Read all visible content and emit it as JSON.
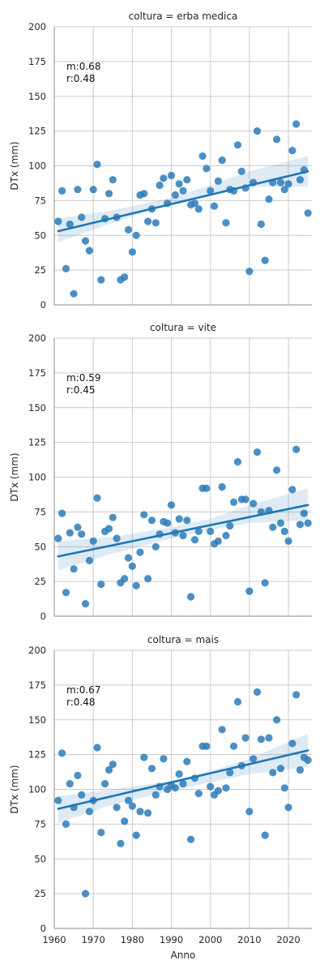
{
  "chart_data": [
    {
      "type": "scatter",
      "title": "coltura = erba medica",
      "xlabel": "",
      "ylabel": "DTx (mm)",
      "xlim": [
        1960,
        2026
      ],
      "ylim": [
        0,
        200
      ],
      "yticks": [
        0,
        25,
        50,
        75,
        100,
        125,
        150,
        175,
        200
      ],
      "xticks": [
        1960,
        1970,
        1980,
        1990,
        2000,
        2010,
        2020
      ],
      "annotation": [
        "m:0.68",
        "r:0.48"
      ],
      "points": [
        [
          1961,
          60
        ],
        [
          1962,
          82
        ],
        [
          1963,
          26
        ],
        [
          1964,
          58
        ],
        [
          1965,
          8
        ],
        [
          1966,
          83
        ],
        [
          1967,
          63
        ],
        [
          1968,
          46
        ],
        [
          1969,
          39
        ],
        [
          1970,
          83
        ],
        [
          1971,
          101
        ],
        [
          1972,
          18
        ],
        [
          1973,
          62
        ],
        [
          1974,
          80
        ],
        [
          1975,
          90
        ],
        [
          1976,
          63
        ],
        [
          1977,
          18
        ],
        [
          1978,
          20
        ],
        [
          1979,
          54
        ],
        [
          1980,
          38
        ],
        [
          1981,
          50
        ],
        [
          1982,
          79
        ],
        [
          1983,
          80
        ],
        [
          1984,
          60
        ],
        [
          1985,
          69
        ],
        [
          1986,
          59
        ],
        [
          1987,
          86
        ],
        [
          1988,
          91
        ],
        [
          1989,
          73
        ],
        [
          1990,
          93
        ],
        [
          1991,
          79
        ],
        [
          1992,
          87
        ],
        [
          1993,
          82
        ],
        [
          1994,
          90
        ],
        [
          1995,
          72
        ],
        [
          1996,
          73
        ],
        [
          1997,
          69
        ],
        [
          1998,
          107
        ],
        [
          1999,
          98
        ],
        [
          2000,
          82
        ],
        [
          2001,
          71
        ],
        [
          2002,
          89
        ],
        [
          2003,
          104
        ],
        [
          2004,
          59
        ],
        [
          2005,
          83
        ],
        [
          2006,
          82
        ],
        [
          2007,
          115
        ],
        [
          2008,
          96
        ],
        [
          2009,
          84
        ],
        [
          2010,
          24
        ],
        [
          2011,
          88
        ],
        [
          2012,
          125
        ],
        [
          2013,
          58
        ],
        [
          2014,
          32
        ],
        [
          2015,
          76
        ],
        [
          2016,
          88
        ],
        [
          2017,
          119
        ],
        [
          2018,
          88
        ],
        [
          2019,
          83
        ],
        [
          2020,
          87
        ],
        [
          2021,
          111
        ],
        [
          2022,
          130
        ],
        [
          2023,
          90
        ],
        [
          2024,
          97
        ],
        [
          2025,
          66
        ]
      ],
      "fit_line": [
        [
          1961,
          53
        ],
        [
          2025,
          96
        ]
      ],
      "ci_band": {
        "x": [
          1961,
          1975,
          1990,
          2000,
          2010,
          2025
        ],
        "lower": [
          45,
          59,
          73,
          79,
          85,
          85
        ],
        "upper": [
          62,
          68,
          77,
          86,
          96,
          107
        ]
      }
    },
    {
      "type": "scatter",
      "title": "coltura = vite",
      "xlabel": "",
      "ylabel": "DTx (mm)",
      "xlim": [
        1960,
        2026
      ],
      "ylim": [
        0,
        200
      ],
      "yticks": [
        0,
        25,
        50,
        75,
        100,
        125,
        150,
        175,
        200
      ],
      "xticks": [
        1960,
        1970,
        1980,
        1990,
        2000,
        2010,
        2020
      ],
      "annotation": [
        "m:0.59",
        "r:0.45"
      ],
      "points": [
        [
          1961,
          56
        ],
        [
          1962,
          74
        ],
        [
          1963,
          17
        ],
        [
          1964,
          60
        ],
        [
          1965,
          34
        ],
        [
          1966,
          64
        ],
        [
          1967,
          59
        ],
        [
          1968,
          9
        ],
        [
          1969,
          40
        ],
        [
          1970,
          54
        ],
        [
          1971,
          85
        ],
        [
          1972,
          23
        ],
        [
          1973,
          61
        ],
        [
          1974,
          63
        ],
        [
          1975,
          71
        ],
        [
          1976,
          56
        ],
        [
          1977,
          24
        ],
        [
          1978,
          27
        ],
        [
          1979,
          42
        ],
        [
          1980,
          36
        ],
        [
          1981,
          22
        ],
        [
          1982,
          46
        ],
        [
          1983,
          73
        ],
        [
          1984,
          27
        ],
        [
          1985,
          69
        ],
        [
          1986,
          50
        ],
        [
          1987,
          59
        ],
        [
          1988,
          68
        ],
        [
          1989,
          67
        ],
        [
          1990,
          80
        ],
        [
          1991,
          60
        ],
        [
          1992,
          70
        ],
        [
          1993,
          58
        ],
        [
          1994,
          69
        ],
        [
          1995,
          14
        ],
        [
          1996,
          55
        ],
        [
          1997,
          61
        ],
        [
          1998,
          92
        ],
        [
          1999,
          92
        ],
        [
          2000,
          61
        ],
        [
          2001,
          52
        ],
        [
          2002,
          54
        ],
        [
          2003,
          93
        ],
        [
          2004,
          58
        ],
        [
          2005,
          65
        ],
        [
          2006,
          82
        ],
        [
          2007,
          111
        ],
        [
          2008,
          84
        ],
        [
          2009,
          84
        ],
        [
          2010,
          18
        ],
        [
          2011,
          81
        ],
        [
          2012,
          118
        ],
        [
          2013,
          75
        ],
        [
          2014,
          24
        ],
        [
          2015,
          76
        ],
        [
          2016,
          64
        ],
        [
          2017,
          105
        ],
        [
          2018,
          67
        ],
        [
          2019,
          61
        ],
        [
          2020,
          54
        ],
        [
          2021,
          91
        ],
        [
          2022,
          120
        ],
        [
          2023,
          66
        ],
        [
          2024,
          74
        ],
        [
          2025,
          67
        ]
      ],
      "fit_line": [
        [
          1961,
          43
        ],
        [
          2025,
          80
        ]
      ],
      "ci_band": {
        "x": [
          1961,
          1975,
          1990,
          2000,
          2010,
          2025
        ],
        "lower": [
          33,
          45,
          56,
          62,
          67,
          69
        ],
        "upper": [
          54,
          57,
          64,
          70,
          80,
          92
        ]
      }
    },
    {
      "type": "scatter",
      "title": "coltura = mais",
      "xlabel": "Anno",
      "ylabel": "DTx (mm)",
      "xlim": [
        1960,
        2026
      ],
      "ylim": [
        0,
        200
      ],
      "yticks": [
        0,
        25,
        50,
        75,
        100,
        125,
        150,
        175,
        200
      ],
      "xticks": [
        1960,
        1970,
        1980,
        1990,
        2000,
        2010,
        2020
      ],
      "annotation": [
        "m:0.67",
        "r:0.48"
      ],
      "points": [
        [
          1961,
          92
        ],
        [
          1962,
          126
        ],
        [
          1963,
          75
        ],
        [
          1964,
          104
        ],
        [
          1965,
          87
        ],
        [
          1966,
          110
        ],
        [
          1967,
          96
        ],
        [
          1968,
          25
        ],
        [
          1969,
          84
        ],
        [
          1970,
          92
        ],
        [
          1971,
          130
        ],
        [
          1972,
          69
        ],
        [
          1973,
          104
        ],
        [
          1974,
          114
        ],
        [
          1975,
          118
        ],
        [
          1976,
          87
        ],
        [
          1977,
          61
        ],
        [
          1978,
          77
        ],
        [
          1979,
          92
        ],
        [
          1980,
          88
        ],
        [
          1981,
          67
        ],
        [
          1982,
          84
        ],
        [
          1983,
          123
        ],
        [
          1984,
          83
        ],
        [
          1985,
          115
        ],
        [
          1986,
          96
        ],
        [
          1987,
          102
        ],
        [
          1988,
          122
        ],
        [
          1989,
          100
        ],
        [
          1990,
          103
        ],
        [
          1991,
          101
        ],
        [
          1992,
          111
        ],
        [
          1993,
          104
        ],
        [
          1994,
          120
        ],
        [
          1995,
          64
        ],
        [
          1996,
          108
        ],
        [
          1997,
          97
        ],
        [
          1998,
          131
        ],
        [
          1999,
          131
        ],
        [
          2000,
          102
        ],
        [
          2001,
          96
        ],
        [
          2002,
          99
        ],
        [
          2003,
          143
        ],
        [
          2004,
          101
        ],
        [
          2005,
          112
        ],
        [
          2006,
          131
        ],
        [
          2007,
          163
        ],
        [
          2008,
          117
        ],
        [
          2009,
          137
        ],
        [
          2010,
          84
        ],
        [
          2011,
          122
        ],
        [
          2012,
          170
        ],
        [
          2013,
          136
        ],
        [
          2014,
          67
        ],
        [
          2015,
          137
        ],
        [
          2016,
          112
        ],
        [
          2017,
          150
        ],
        [
          2018,
          115
        ],
        [
          2019,
          101
        ],
        [
          2020,
          87
        ],
        [
          2021,
          133
        ],
        [
          2022,
          168
        ],
        [
          2023,
          114
        ],
        [
          2024,
          123
        ],
        [
          2025,
          121
        ]
      ],
      "fit_line": [
        [
          1961,
          86
        ],
        [
          2025,
          128
        ]
      ],
      "ci_band": {
        "x": [
          1961,
          1975,
          1990,
          2000,
          2010,
          2025
        ],
        "lower": [
          76,
          89,
          99,
          105,
          111,
          116
        ],
        "upper": [
          95,
          100,
          106,
          113,
          122,
          140
        ]
      }
    }
  ],
  "colors": {
    "point": "#2b7bba",
    "line": "#1f77b4",
    "band": "#1f77b4",
    "grid": "#cccccc",
    "axis": "#8c8c8c",
    "text": "#262626"
  }
}
